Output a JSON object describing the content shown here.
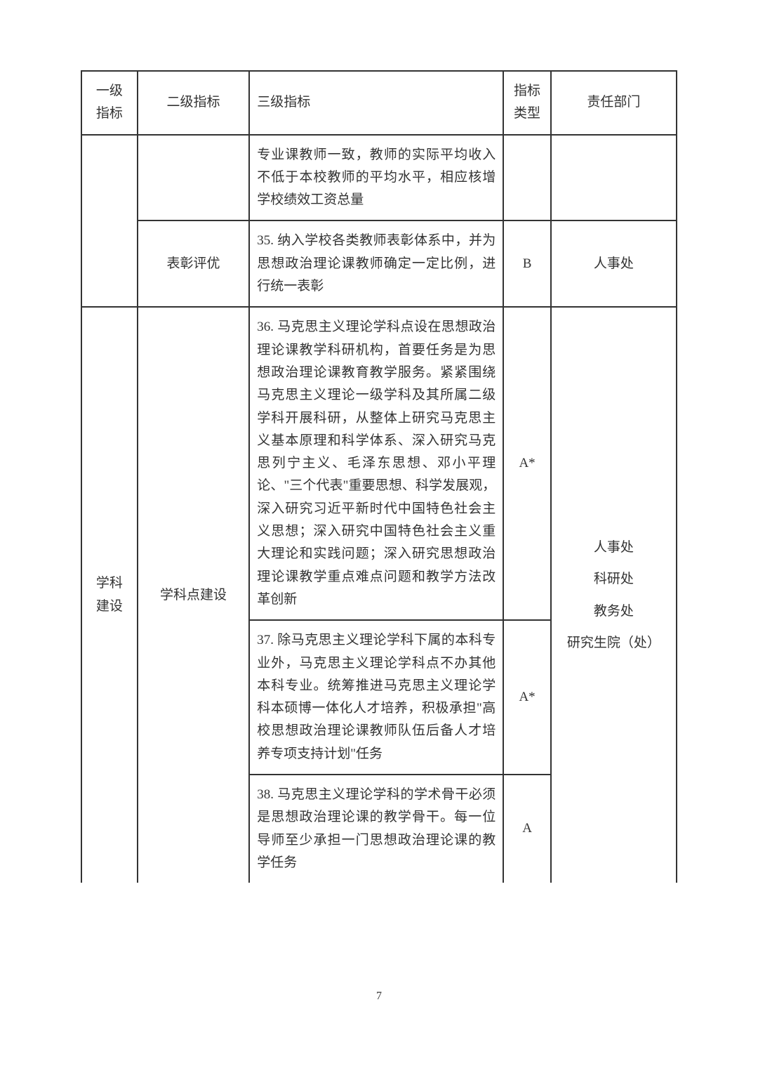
{
  "table": {
    "headers": {
      "level1": "一级\n指标",
      "level2": "二级指标",
      "level3": "三级指标",
      "type": "指标\n类型",
      "dept": "责任部门"
    },
    "rows": [
      {
        "level1": "",
        "level2": "",
        "level3": "专业课教师一致，教师的实际平均收入不低于本校教师的平均水平，相应核增学校绩效工资总量",
        "type": "",
        "dept": ""
      },
      {
        "level1": "",
        "level2": "表彰评优",
        "level3": "35. 纳入学校各类教师表彰体系中，并为思想政治理论课教师确定一定比例，进行统一表彰",
        "type": "B",
        "dept": "人事处"
      },
      {
        "level1": "学科\n建设",
        "level2": "学科点建设",
        "level3": "36. 马克思主义理论学科点设在思想政治理论课教学科研机构，首要任务是为思想政治理论课教育教学服务。紧紧围绕马克思主义理论一级学科及其所属二级学科开展科研，从整体上研究马克思主义基本原理和科学体系、深入研究马克思列宁主义、毛泽东思想、邓小平理论、\"三个代表\"重要思想、科学发展观，深入研究习近平新时代中国特色社会主义思想；深入研究中国特色社会主义重大理论和实践问题；深入研究思想政治理论课教学重点难点问题和教学方法改革创新",
        "type": "A*",
        "dept": "人事处\n科研处\n教务处\n研究生院（处）"
      },
      {
        "level3": "37. 除马克思主义理论学科下属的本科专业外，马克思主义理论学科点不办其他本科专业。统筹推进马克思主义理论学科本硕博一体化人才培养，积极承担\"高校思想政治理论课教师队伍后备人才培养专项支持计划\"任务",
        "type": "A*"
      },
      {
        "level3": "38. 马克思主义理论学科的学术骨干必须是思想政治理论课的教学骨干。每一位导师至少承担一门思想政治理论课的教学任务",
        "type": "A"
      }
    ]
  },
  "page_number": "7"
}
